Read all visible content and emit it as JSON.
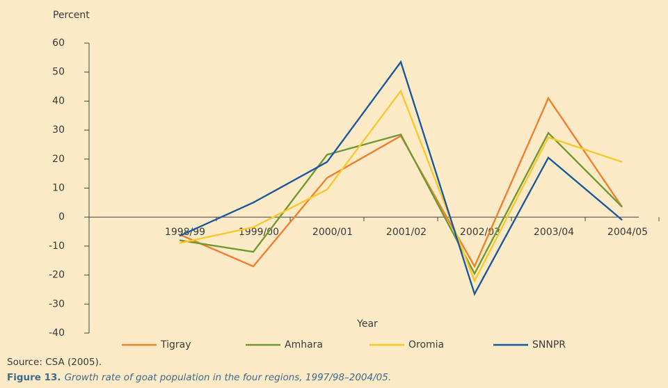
{
  "chart_data": {
    "type": "line",
    "y_label": "Percent",
    "x_label": "Year",
    "categories": [
      "1998/99",
      "1999/00",
      "2000/01",
      "2001/02",
      "2002/03",
      "2003/04",
      "2004/05"
    ],
    "series": [
      {
        "name": "Tigray",
        "color": "#f07f2e",
        "values": [
          -6,
          -17,
          13.5,
          28,
          -17,
          41,
          3.5
        ]
      },
      {
        "name": "Amhara",
        "color": "#6d9a33",
        "values": [
          -8,
          -12,
          21.5,
          28.5,
          -19.5,
          29,
          3.5
        ]
      },
      {
        "name": "Oromia",
        "color": "#fcc72c",
        "values": [
          -9,
          -3.5,
          9.5,
          43.5,
          -22,
          27.5,
          19
        ]
      },
      {
        "name": "SNNPR",
        "color": "#1a5a9c",
        "values": [
          -6.5,
          5,
          19,
          53.5,
          -26.5,
          20.5,
          -1
        ]
      }
    ],
    "ylim": [
      -40,
      60
    ],
    "yticks": [
      -40,
      -30,
      -20,
      -10,
      0,
      10,
      20,
      30,
      40,
      50,
      60
    ],
    "legend": "bottom",
    "source": "Source: CSA (2005).",
    "figure_label": "Figure 13.",
    "caption": "Growth rate of goat population in the four regions, 1997/98–2004/05."
  }
}
